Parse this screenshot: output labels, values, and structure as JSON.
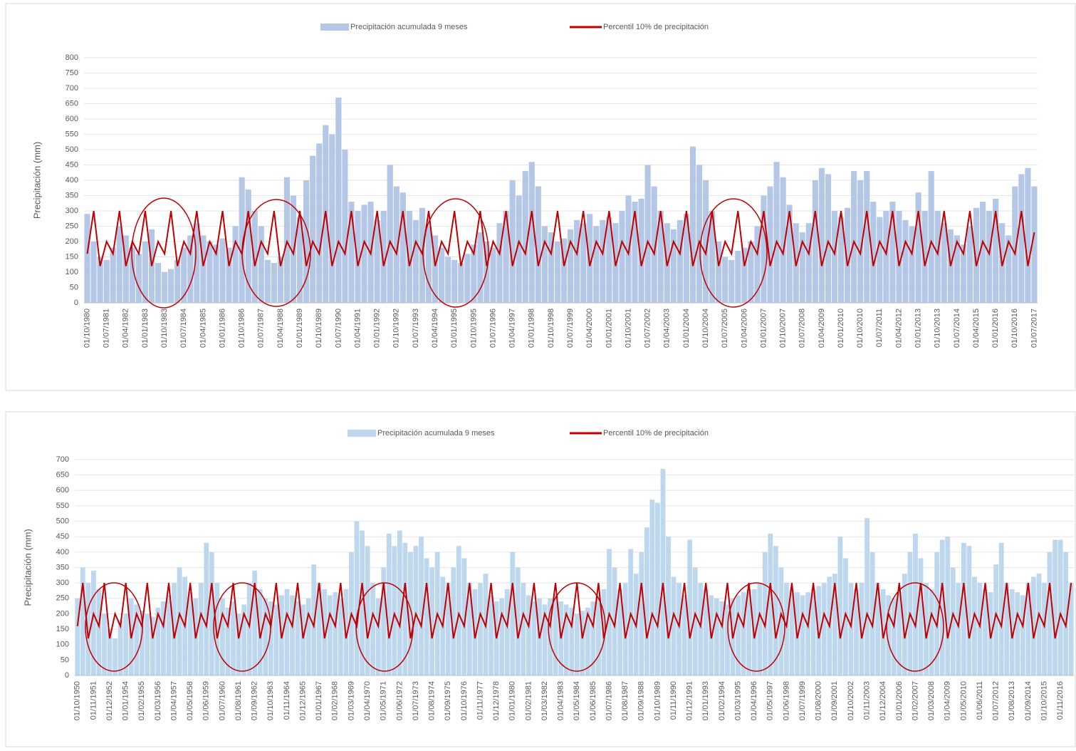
{
  "chart_data": [
    {
      "type": "combo",
      "y_label": "Precipitación (mm)",
      "grid": true,
      "ylim": [
        0,
        800
      ],
      "yticks": [
        0,
        50,
        100,
        150,
        200,
        250,
        300,
        350,
        400,
        450,
        500,
        550,
        600,
        650,
        700,
        750,
        800
      ],
      "categories": [
        "01/10/1980",
        null,
        null,
        "01/07/1981",
        null,
        null,
        "01/04/1982",
        null,
        null,
        "01/01/1983",
        null,
        null,
        "01/10/1983",
        null,
        null,
        "01/07/1984",
        null,
        null,
        "01/04/1985",
        null,
        null,
        "01/01/1986",
        null,
        null,
        "01/10/1986",
        null,
        null,
        "01/07/1987",
        null,
        null,
        "01/04/1988",
        null,
        null,
        "01/01/1989",
        null,
        null,
        "01/10/1989",
        null,
        null,
        "01/07/1990",
        null,
        null,
        "01/04/1991",
        null,
        null,
        "01/01/1992",
        null,
        null,
        "01/10/1992",
        null,
        null,
        "01/07/1993",
        null,
        null,
        "01/04/1994",
        null,
        null,
        "01/01/1995",
        null,
        null,
        "01/10/1995",
        null,
        null,
        "01/07/1996",
        null,
        null,
        "01/04/1997",
        null,
        null,
        "01/01/1998",
        null,
        null,
        "01/10/1998",
        null,
        null,
        "01/07/1999",
        null,
        null,
        "01/04/2000",
        null,
        null,
        "01/01/2001",
        null,
        null,
        "01/10/2001",
        null,
        null,
        "01/07/2002",
        null,
        null,
        "01/04/2003",
        null,
        null,
        "01/01/2004",
        null,
        null,
        "01/10/2004",
        null,
        null,
        "01/07/2005",
        null,
        null,
        "01/04/2006",
        null,
        null,
        "01/01/2007",
        null,
        null,
        "01/10/2007",
        null,
        null,
        "01/07/2008",
        null,
        null,
        "01/04/2009",
        null,
        null,
        "01/01/2010",
        null,
        null,
        "01/10/2010",
        null,
        null,
        "01/07/2011",
        null,
        null,
        "01/04/2012",
        null,
        null,
        "01/01/2013",
        null,
        null,
        "01/10/2013",
        null,
        null,
        "01/07/2014",
        null,
        null,
        "01/04/2015",
        null,
        null,
        "01/01/2016",
        null,
        null,
        "01/10/2016",
        null,
        null,
        "01/07/2017"
      ],
      "series": [
        {
          "name": "Precipitación acumulada 9 meses",
          "type": "bar",
          "color": "#b4c7e7",
          "values": [
            290,
            200,
            150,
            140,
            180,
            250,
            220,
            180,
            160,
            200,
            240,
            130,
            100,
            110,
            140,
            180,
            220,
            260,
            220,
            200,
            190,
            210,
            180,
            250,
            410,
            370,
            300,
            250,
            140,
            130,
            150,
            410,
            350,
            280,
            400,
            480,
            520,
            580,
            550,
            670,
            500,
            330,
            300,
            320,
            330,
            270,
            300,
            450,
            380,
            360,
            300,
            270,
            310,
            250,
            220,
            180,
            150,
            140,
            130,
            160,
            190,
            230,
            200,
            180,
            260,
            300,
            400,
            350,
            430,
            460,
            380,
            250,
            230,
            200,
            210,
            240,
            270,
            260,
            290,
            250,
            270,
            280,
            260,
            300,
            350,
            330,
            340,
            450,
            380,
            300,
            260,
            240,
            270,
            290,
            510,
            450,
            400,
            300,
            200,
            150,
            140,
            170,
            180,
            200,
            250,
            350,
            380,
            460,
            410,
            320,
            260,
            230,
            260,
            400,
            440,
            420,
            300,
            280,
            310,
            430,
            400,
            430,
            330,
            280,
            300,
            330,
            300,
            270,
            250,
            360,
            300,
            430,
            300,
            260,
            240,
            220,
            190,
            250,
            310,
            330,
            300,
            340,
            260,
            220,
            380,
            420,
            440,
            380
          ]
        },
        {
          "name": "Percentil 10% de precipitación",
          "type": "line",
          "color": "#c00000",
          "values": [
            160,
            300,
            120,
            200,
            160,
            300,
            120,
            200,
            160,
            300,
            120,
            200,
            160,
            300,
            120,
            200,
            160,
            300,
            120,
            200,
            160,
            300,
            120,
            200,
            160,
            300,
            120,
            200,
            160,
            300,
            120,
            200,
            160,
            300,
            120,
            200,
            160,
            300,
            120,
            200,
            160,
            300,
            120,
            200,
            160,
            300,
            120,
            200,
            160,
            300,
            120,
            200,
            160,
            300,
            120,
            200,
            160,
            300,
            120,
            200,
            160,
            300,
            120,
            200,
            160,
            300,
            120,
            200,
            160,
            300,
            120,
            200,
            160,
            300,
            120,
            200,
            160,
            300,
            120,
            200,
            160,
            300,
            120,
            200,
            160,
            300,
            120,
            200,
            160,
            300,
            120,
            200,
            160,
            300,
            120,
            200,
            160,
            300,
            120,
            200,
            160,
            300,
            120,
            200,
            160,
            300,
            120,
            200,
            160,
            300,
            120,
            200,
            160,
            300,
            120,
            200,
            160,
            300,
            120,
            200,
            160,
            300,
            120,
            200,
            160,
            300,
            120,
            200,
            160,
            300,
            120,
            200,
            160,
            300,
            120,
            200,
            160,
            300,
            120,
            200,
            160,
            300,
            120,
            200,
            160,
            300,
            120,
            230
          ]
        }
      ]
    },
    {
      "type": "combo",
      "y_label": "Precipitación (mm)",
      "grid": true,
      "ylim": [
        0,
        700
      ],
      "yticks": [
        0,
        50,
        100,
        150,
        200,
        250,
        300,
        350,
        400,
        450,
        500,
        550,
        600,
        650,
        700
      ],
      "categories": [
        "01/10/1950",
        null,
        null,
        "01/11/1951",
        null,
        null,
        "01/12/1952",
        null,
        null,
        "01/01/1954",
        null,
        null,
        "01/02/1955",
        null,
        null,
        "01/03/1956",
        null,
        null,
        "01/04/1957",
        null,
        null,
        "01/05/1958",
        null,
        null,
        "01/06/1959",
        null,
        null,
        "01/07/1960",
        null,
        null,
        "01/08/1961",
        null,
        null,
        "01/09/1962",
        null,
        null,
        "01/10/1963",
        null,
        null,
        "01/11/1964",
        null,
        null,
        "01/12/1965",
        null,
        null,
        "01/01/1967",
        null,
        null,
        "01/02/1968",
        null,
        null,
        "01/03/1969",
        null,
        null,
        "01/04/1970",
        null,
        null,
        "01/05/1971",
        null,
        null,
        "01/06/1972",
        null,
        null,
        "01/07/1973",
        null,
        null,
        "01/08/1974",
        null,
        null,
        "01/09/1975",
        null,
        null,
        "01/10/1976",
        null,
        null,
        "01/11/1977",
        null,
        null,
        "01/12/1978",
        null,
        null,
        "01/01/1980",
        null,
        null,
        "01/02/1981",
        null,
        null,
        "01/03/1982",
        null,
        null,
        "01/04/1983",
        null,
        null,
        "01/05/1984",
        null,
        null,
        "01/06/1985",
        null,
        null,
        "01/07/1986",
        null,
        null,
        "01/08/1987",
        null,
        null,
        "01/09/1988",
        null,
        null,
        "01/10/1989",
        null,
        null,
        "01/11/1990",
        null,
        null,
        "01/12/1991",
        null,
        null,
        "01/01/1993",
        null,
        null,
        "01/02/1994",
        null,
        null,
        "01/03/1995",
        null,
        null,
        "01/04/1996",
        null,
        null,
        "01/05/1997",
        null,
        null,
        "01/06/1998",
        null,
        null,
        "01/07/1999",
        null,
        null,
        "01/08/2000",
        null,
        null,
        "01/09/2001",
        null,
        null,
        "01/10/2002",
        null,
        null,
        "01/11/2003",
        null,
        null,
        "01/12/2004",
        null,
        null,
        "01/01/2006",
        null,
        null,
        "01/02/2007",
        null,
        null,
        "01/03/2008",
        null,
        null,
        "01/04/2009",
        null,
        null,
        "01/05/2010",
        null,
        null,
        "01/06/2011",
        null,
        null,
        "01/07/2012",
        null,
        null,
        "01/08/2013",
        null,
        null,
        "01/09/2014",
        null,
        null,
        "01/10/2015",
        null,
        null,
        "01/11/2016",
        null,
        null
      ],
      "series": [
        {
          "name": "Precipitación acumulada 9 meses",
          "type": "bar",
          "color": "#bdd7ee",
          "values": [
            250,
            350,
            300,
            340,
            280,
            200,
            150,
            120,
            180,
            200,
            250,
            230,
            210,
            200,
            190,
            220,
            240,
            260,
            300,
            350,
            320,
            270,
            250,
            300,
            430,
            400,
            300,
            250,
            220,
            240,
            200,
            230,
            300,
            340,
            280,
            250,
            240,
            230,
            260,
            280,
            260,
            240,
            230,
            250,
            360,
            300,
            280,
            260,
            270,
            250,
            280,
            400,
            500,
            470,
            420,
            300,
            250,
            350,
            460,
            420,
            470,
            430,
            400,
            420,
            450,
            380,
            350,
            400,
            320,
            300,
            350,
            420,
            380,
            300,
            280,
            300,
            330,
            260,
            240,
            250,
            280,
            400,
            350,
            300,
            260,
            240,
            250,
            230,
            250,
            260,
            240,
            230,
            220,
            200,
            210,
            220,
            240,
            260,
            280,
            410,
            350,
            280,
            300,
            410,
            330,
            400,
            480,
            570,
            560,
            670,
            450,
            320,
            300,
            260,
            440,
            350,
            300,
            280,
            260,
            250,
            240,
            230,
            250,
            260,
            270,
            280,
            280,
            300,
            400,
            460,
            420,
            350,
            300,
            280,
            270,
            260,
            270,
            280,
            290,
            300,
            320,
            330,
            450,
            380,
            300,
            280,
            300,
            510,
            400,
            300,
            280,
            260,
            250,
            270,
            330,
            400,
            460,
            380,
            300,
            280,
            400,
            440,
            450,
            350,
            300,
            430,
            420,
            320,
            300,
            280,
            270,
            360,
            430,
            300,
            280,
            270,
            260,
            300,
            320,
            330,
            300,
            400,
            440,
            440,
            400,
            300
          ]
        },
        {
          "name": "Percentil 10% de precipitación",
          "type": "line",
          "color": "#c00000",
          "values": [
            160,
            300,
            120,
            200,
            160,
            300,
            120,
            200,
            160,
            300,
            120,
            200,
            160,
            300,
            120,
            200,
            160,
            300,
            120,
            200,
            160,
            300,
            120,
            200,
            160,
            300,
            120,
            200,
            160,
            300,
            120,
            200,
            160,
            300,
            120,
            200,
            160,
            300,
            120,
            200,
            160,
            300,
            120,
            200,
            160,
            300,
            120,
            200,
            160,
            300,
            120,
            200,
            160,
            300,
            120,
            200,
            160,
            300,
            120,
            200,
            160,
            300,
            120,
            200,
            160,
            300,
            120,
            200,
            160,
            300,
            120,
            200,
            160,
            300,
            120,
            200,
            160,
            300,
            120,
            200,
            160,
            300,
            120,
            200,
            160,
            300,
            120,
            200,
            160,
            300,
            120,
            200,
            160,
            300,
            120,
            200,
            160,
            300,
            120,
            200,
            160,
            300,
            120,
            200,
            160,
            300,
            120,
            200,
            160,
            300,
            120,
            200,
            160,
            300,
            120,
            200,
            160,
            300,
            120,
            200,
            160,
            300,
            120,
            200,
            160,
            300,
            120,
            200,
            160,
            300,
            120,
            200,
            160,
            300,
            120,
            200,
            160,
            300,
            120,
            200,
            160,
            300,
            120,
            200,
            160,
            300,
            120,
            200,
            160,
            300,
            120,
            200,
            160,
            300,
            120,
            200,
            160,
            300,
            120,
            200,
            160,
            300,
            120,
            200,
            160,
            300,
            120,
            200,
            160,
            300,
            120,
            200,
            160,
            300,
            120,
            200,
            160,
            300,
            120,
            200,
            160,
            300,
            120,
            200,
            160,
            300
          ]
        }
      ]
    }
  ]
}
